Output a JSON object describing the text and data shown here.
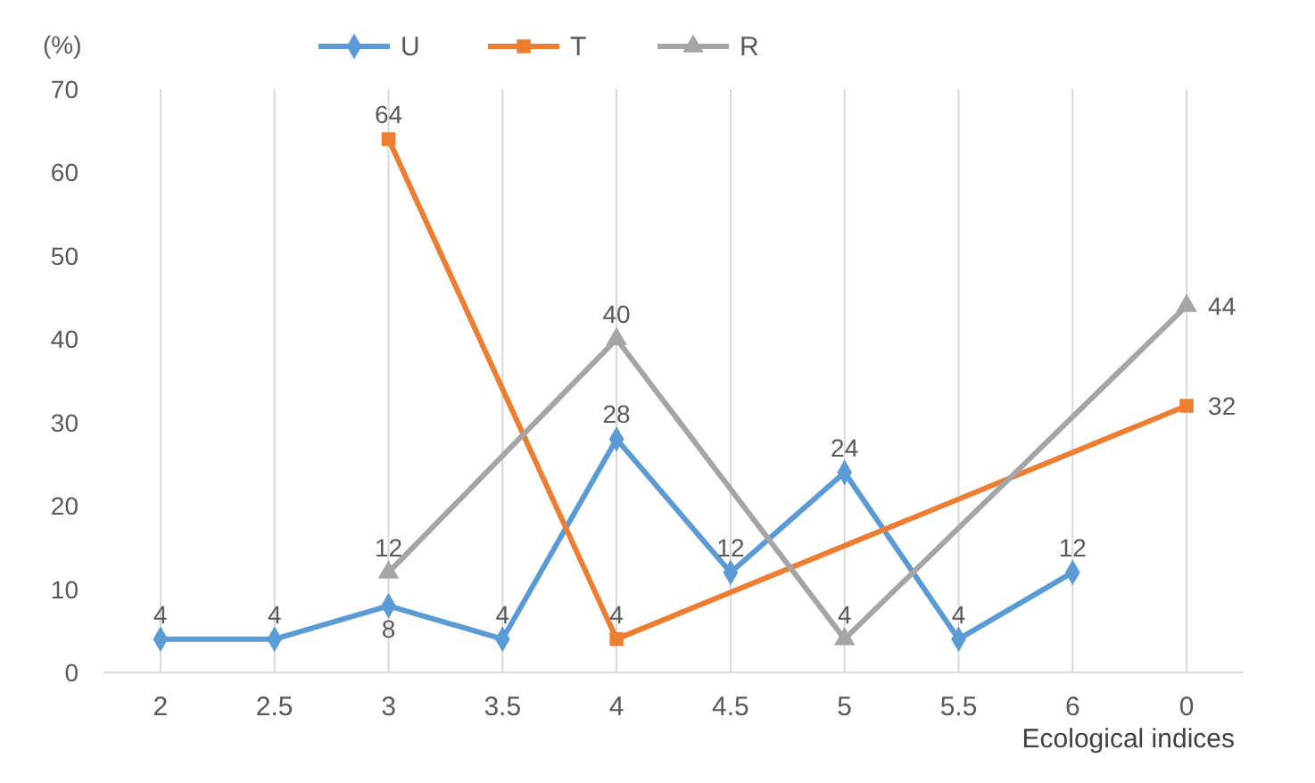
{
  "chart_data": {
    "type": "line",
    "ylabel": "(%)",
    "xlabel": "Ecological indices",
    "categories": [
      "2",
      "2.5",
      "3",
      "3.5",
      "4",
      "4.5",
      "5",
      "5.5",
      "6",
      "0"
    ],
    "series": [
      {
        "name": "U",
        "color": "#5b9bd5",
        "marker": "diamond",
        "values": [
          4,
          4,
          8,
          4,
          28,
          12,
          24,
          4,
          12,
          null
        ]
      },
      {
        "name": "T",
        "color": "#ed7d31",
        "marker": "square",
        "values": [
          null,
          null,
          64,
          null,
          4,
          null,
          null,
          null,
          null,
          32
        ]
      },
      {
        "name": "R",
        "color": "#a5a5a5",
        "marker": "triangle",
        "values": [
          null,
          null,
          12,
          null,
          40,
          null,
          4,
          null,
          null,
          44
        ]
      }
    ],
    "ylim": [
      0,
      70
    ],
    "yticks": [
      0,
      10,
      20,
      30,
      40,
      50,
      60,
      70
    ],
    "grid": "x",
    "legend": "top",
    "data_labels": true
  }
}
